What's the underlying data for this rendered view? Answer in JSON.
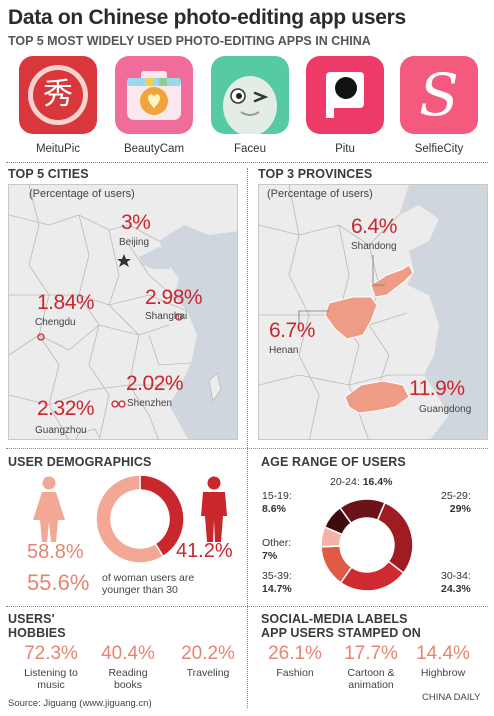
{
  "title": "Data on Chinese photo-editing app users",
  "apps_heading": "TOP 5 MOST WIDELY USED PHOTO-EDITING APPS IN CHINA",
  "apps": [
    {
      "name": "MeituPic",
      "icon": "meitu-icon",
      "glyph": "秀"
    },
    {
      "name": "BeautyCam",
      "icon": "beautycam-icon"
    },
    {
      "name": "Faceu",
      "icon": "faceu-icon"
    },
    {
      "name": "Pitu",
      "icon": "pitu-icon"
    },
    {
      "name": "SelfieCity",
      "icon": "selfiecity-icon",
      "glyph": "S"
    }
  ],
  "cities": {
    "heading": "TOP 5 CITIES",
    "note": "(Percentage of users)",
    "items": [
      {
        "name": "Beijing",
        "value": "3%"
      },
      {
        "name": "Chengdu",
        "value": "1.84%"
      },
      {
        "name": "Shanghai",
        "value": "2.98%"
      },
      {
        "name": "Shenzhen",
        "value": "2.02%"
      },
      {
        "name": "Guangzhou",
        "value": "2.32%"
      }
    ]
  },
  "provinces": {
    "heading": "TOP 3 PROVINCES",
    "note": "(Percentage of users)",
    "items": [
      {
        "name": "Shandong",
        "value": "6.4%"
      },
      {
        "name": "Henan",
        "value": "6.7%"
      },
      {
        "name": "Guangdong",
        "value": "11.9%"
      }
    ]
  },
  "demographics": {
    "heading": "USER DEMOGRAPHICS",
    "female_pct": "58.8%",
    "male_pct": "41.2%",
    "young_pct": "55.6%",
    "young_text": "of woman users are younger than 30"
  },
  "age": {
    "heading": "AGE RANGE OF USERS",
    "labels": [
      {
        "range": "20-24:",
        "pct": "16.4%"
      },
      {
        "range": "15-19:",
        "pct": "8.6%"
      },
      {
        "range": "25-29:",
        "pct": "29%"
      },
      {
        "range": "Other:",
        "pct": "7%"
      },
      {
        "range": "35-39:",
        "pct": "14.7%"
      },
      {
        "range": "30-34:",
        "pct": "24.3%"
      }
    ]
  },
  "hobbies": {
    "heading_line1": "USERS'",
    "heading_line2": "HOBBIES",
    "items": [
      {
        "pct": "72.3%",
        "label": "Listening to music"
      },
      {
        "pct": "40.4%",
        "label": "Reading books"
      },
      {
        "pct": "20.2%",
        "label": "Traveling"
      }
    ]
  },
  "labels": {
    "heading_line1": "SOCIAL-MEDIA LABELS",
    "heading_line2": "APP USERS STAMPED ON",
    "items": [
      {
        "pct": "26.1%",
        "label": "Fashion"
      },
      {
        "pct": "17.7%",
        "label": "Cartoon & animation"
      },
      {
        "pct": "14.4%",
        "label": "Highbrow"
      }
    ]
  },
  "source": "Source: Jiguang (www.jiguang.cn)",
  "credit": "CHINA DAILY",
  "colors": {
    "red": "#c9272c",
    "salmon": "#e8846f",
    "pink_light": "#f3b4a6",
    "dark_red": "#7a1419",
    "maroon": "#5a0f14"
  },
  "chart_data": [
    {
      "type": "pie",
      "title": "USER DEMOGRAPHICS",
      "categories": [
        "female",
        "male"
      ],
      "values": [
        58.8,
        41.2
      ],
      "colors": [
        "#f3a896",
        "#c9272c"
      ]
    },
    {
      "type": "pie",
      "title": "AGE RANGE OF USERS",
      "categories": [
        "20-24",
        "25-29",
        "30-34",
        "35-39",
        "Other",
        "15-19"
      ],
      "values": [
        16.4,
        29,
        24.3,
        14.7,
        7,
        8.6
      ],
      "colors": [
        "#6b1318",
        "#9e1c22",
        "#cf2a2f",
        "#e05a45",
        "#f4b3a6",
        "#3d0a0e"
      ]
    },
    {
      "type": "bar",
      "title": "TOP 5 CITIES",
      "categories": [
        "Beijing",
        "Chengdu",
        "Shanghai",
        "Shenzhen",
        "Guangzhou"
      ],
      "values": [
        3,
        1.84,
        2.98,
        2.02,
        2.32
      ]
    },
    {
      "type": "bar",
      "title": "TOP 3 PROVINCES",
      "categories": [
        "Shandong",
        "Henan",
        "Guangdong"
      ],
      "values": [
        6.4,
        6.7,
        11.9
      ]
    },
    {
      "type": "bar",
      "title": "USERS' HOBBIES",
      "categories": [
        "Listening to music",
        "Reading books",
        "Traveling"
      ],
      "values": [
        72.3,
        40.4,
        20.2
      ]
    },
    {
      "type": "bar",
      "title": "SOCIAL-MEDIA LABELS APP USERS STAMPED ON",
      "categories": [
        "Fashion",
        "Cartoon & animation",
        "Highbrow"
      ],
      "values": [
        26.1,
        17.7,
        14.4
      ]
    }
  ]
}
